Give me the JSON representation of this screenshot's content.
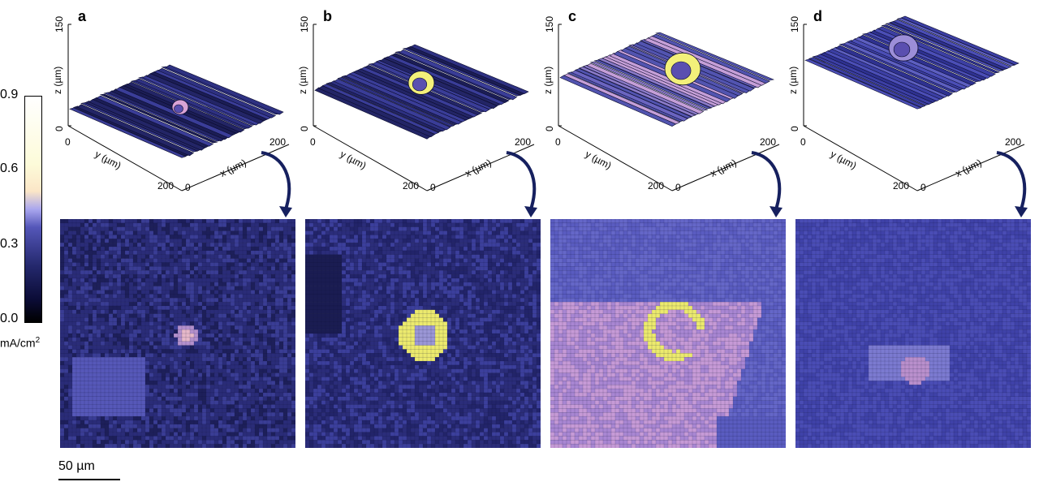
{
  "panels": [
    {
      "letter": "a"
    },
    {
      "letter": "b"
    },
    {
      "letter": "c"
    },
    {
      "letter": "d"
    }
  ],
  "axis": {
    "z_label": "z (µm)",
    "y_label": "y (µm)",
    "x_label": "x (µm)",
    "z_ticks": [
      "150",
      "0"
    ],
    "y_ticks": [
      "0",
      "200"
    ],
    "x_ticks": [
      "0",
      "200"
    ]
  },
  "colorbar": {
    "ticks": [
      "0.9",
      "0.6",
      "0.3",
      "0.0"
    ],
    "unit_base": "mA/cm",
    "unit_sup": "2"
  },
  "scalebar": {
    "label": "50 µm"
  },
  "colors": {
    "dark": "#1f2157",
    "mid": "#3f42a0",
    "light": "#6a6cc8",
    "pink": "#d9a3d6",
    "yellow": "#f3f07a",
    "arrow": "#16205f"
  }
}
